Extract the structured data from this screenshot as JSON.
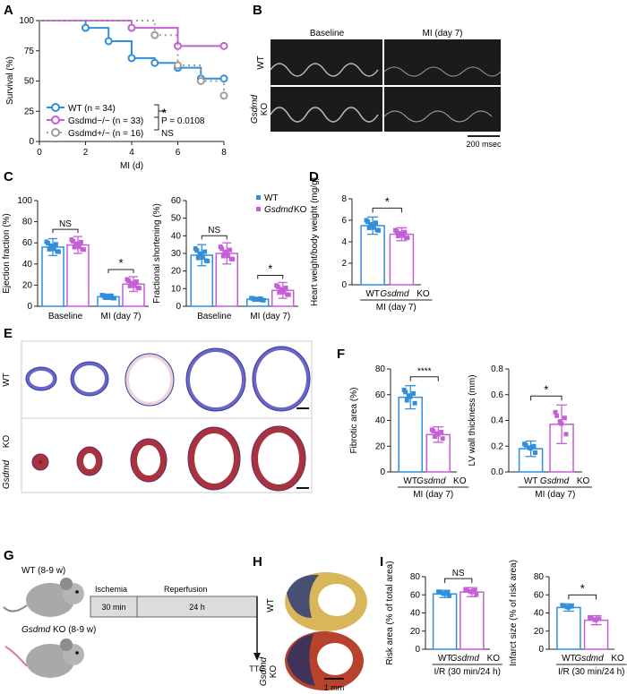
{
  "colors": {
    "wt": "#2f8fdc",
    "ko": "#c45fd6",
    "het": "#9e9e9e",
    "axis": "#222222"
  },
  "panels": {
    "A": "A",
    "B": "B",
    "C": "C",
    "D": "D",
    "E": "E",
    "F": "F",
    "G": "G",
    "H": "H",
    "I": "I"
  },
  "panel_b": {
    "baseline_label": "Baseline",
    "mi_label": "MI (day 7)",
    "row_wt": "WT",
    "row_ko_gene": "Gsdmd",
    "row_ko_suffix": "KO",
    "scale_bar_label": "200 msec"
  },
  "panel_e": {
    "row_wt": "WT",
    "row_ko_gene": "Gsdmd",
    "row_ko_suffix": "KO"
  },
  "panel_g": {
    "wt_mouse_label": "WT (8-9 w)",
    "ko_mouse_gene": "Gsdmd",
    "ko_mouse_suffix": "KO (8-9 w)",
    "ischemia_label": "Ischemia",
    "ischemia_duration": "30 min",
    "reperfusion_label": "Reperfusion",
    "reperfusion_duration": "24 h",
    "endpoint_label": "TTC"
  },
  "panel_h": {
    "row_wt": "WT",
    "row_ko_gene": "Gsdmd",
    "row_ko_suffix": "KO",
    "scale_bar_label": "1 mm"
  },
  "common": {
    "wt": "WT",
    "gsdmd": "Gsdmd",
    "ko": "KO",
    "mi_day7": "MI (day 7)",
    "ir_group": "I/R (30 min/24 h)",
    "star": "*",
    "four_star": "****",
    "ns": "NS"
  },
  "chart_data": [
    {
      "id": "A",
      "type": "line",
      "xlabel": "MI (d)",
      "ylabel": "Survival (%)",
      "xlim": [
        0,
        8
      ],
      "ylim": [
        0,
        100
      ],
      "xticks": [
        "0",
        "2",
        "4",
        "6",
        "8"
      ],
      "yticks": [
        "0",
        "25",
        "50",
        "75",
        "100"
      ],
      "legend": [
        "WT (n = 34)",
        "Gsdmd−/− (n = 33)",
        "Gsdmd+/− (n = 16)"
      ],
      "stat_label": "P = 0.0108",
      "series": [
        {
          "name": "WT (n = 34)",
          "steps": [
            [
              0,
              100
            ],
            [
              2,
              94
            ],
            [
              3,
              83
            ],
            [
              4,
              69
            ],
            [
              5,
              65
            ],
            [
              6,
              61
            ],
            [
              7,
              52
            ],
            [
              8,
              52
            ]
          ]
        },
        {
          "name": "Gsdmd−/− (n = 33)",
          "steps": [
            [
              0,
              100
            ],
            [
              4,
              94
            ],
            [
              6,
              79
            ],
            [
              8,
              79
            ]
          ]
        },
        {
          "name": "Gsdmd+/− (n = 16)",
          "steps": [
            [
              0,
              100
            ],
            [
              5,
              88
            ],
            [
              6,
              63
            ],
            [
              7,
              50
            ],
            [
              8,
              38
            ]
          ]
        }
      ]
    },
    {
      "id": "C1",
      "type": "bar",
      "ylabel": "Ejection fraction (%)",
      "ylim": [
        0,
        100
      ],
      "yticks": [
        "0",
        "20",
        "40",
        "60",
        "80",
        "100"
      ],
      "categories": [
        "Baseline",
        "MI (day 7)"
      ],
      "series": [
        {
          "name": "WT",
          "values": [
            56,
            9
          ],
          "errors": [
            8,
            2.5
          ]
        },
        {
          "name": "Gsdmd KO",
          "values": [
            58,
            21
          ],
          "errors": [
            8,
            7
          ]
        }
      ]
    },
    {
      "id": "C2",
      "type": "bar",
      "ylabel": "Fractional shortening (%)",
      "ylim": [
        0,
        60
      ],
      "yticks": [
        "0",
        "10",
        "20",
        "30",
        "40",
        "50",
        "60"
      ],
      "categories": [
        "Baseline",
        "MI (day 7)"
      ],
      "legend": [
        "WT",
        "Gsdmd KO"
      ],
      "series": [
        {
          "name": "WT",
          "values": [
            29,
            4
          ],
          "errors": [
            6,
            1
          ]
        },
        {
          "name": "Gsdmd KO",
          "values": [
            30,
            9
          ],
          "errors": [
            6,
            4.5
          ]
        }
      ]
    },
    {
      "id": "D",
      "type": "bar",
      "ylabel": "Heart weight/body weight (mg/g)",
      "ylim": [
        0,
        8
      ],
      "yticks": [
        "0",
        "2",
        "4",
        "6",
        "8"
      ],
      "categories": [
        "WT",
        "Gsdmd KO"
      ],
      "group_label": "MI (day 7)",
      "values": [
        5.5,
        4.7
      ],
      "errors": [
        0.8,
        0.6
      ]
    },
    {
      "id": "F1",
      "type": "bar",
      "ylabel": "Fibrotic area (%)",
      "ylim": [
        0,
        80
      ],
      "yticks": [
        "0",
        "20",
        "40",
        "60",
        "80"
      ],
      "categories": [
        "WT",
        "Gsdmd KO"
      ],
      "group_label": "MI (day 7)",
      "values": [
        58,
        29
      ],
      "errors": [
        9,
        6
      ]
    },
    {
      "id": "F2",
      "type": "bar",
      "ylabel": "LV wall thickness (mm)",
      "ylim": [
        0,
        0.8
      ],
      "yticks": [
        "0.0",
        "0.2",
        "0.4",
        "0.6",
        "0.8"
      ],
      "categories": [
        "WT",
        "Gsdmd KO"
      ],
      "group_label": "MI (day 7)",
      "values": [
        0.18,
        0.37
      ],
      "errors": [
        0.06,
        0.15
      ]
    },
    {
      "id": "I1",
      "type": "bar",
      "ylabel": "Risk area (% of total area)",
      "ylim": [
        0,
        80
      ],
      "yticks": [
        "0",
        "20",
        "40",
        "60",
        "80"
      ],
      "categories": [
        "WT",
        "Gsdmd KO"
      ],
      "group_label": "I/R (30 min/24 h)",
      "values": [
        61,
        63
      ],
      "errors": [
        4,
        5
      ]
    },
    {
      "id": "I2",
      "type": "bar",
      "ylabel": "Infarct size (% of risk area)",
      "ylim": [
        0,
        80
      ],
      "yticks": [
        "0",
        "20",
        "40",
        "60",
        "80"
      ],
      "categories": [
        "WT",
        "Gsdmd KO"
      ],
      "group_label": "I/R (30 min/24 h)",
      "values": [
        46,
        32
      ],
      "errors": [
        4,
        5
      ]
    }
  ]
}
